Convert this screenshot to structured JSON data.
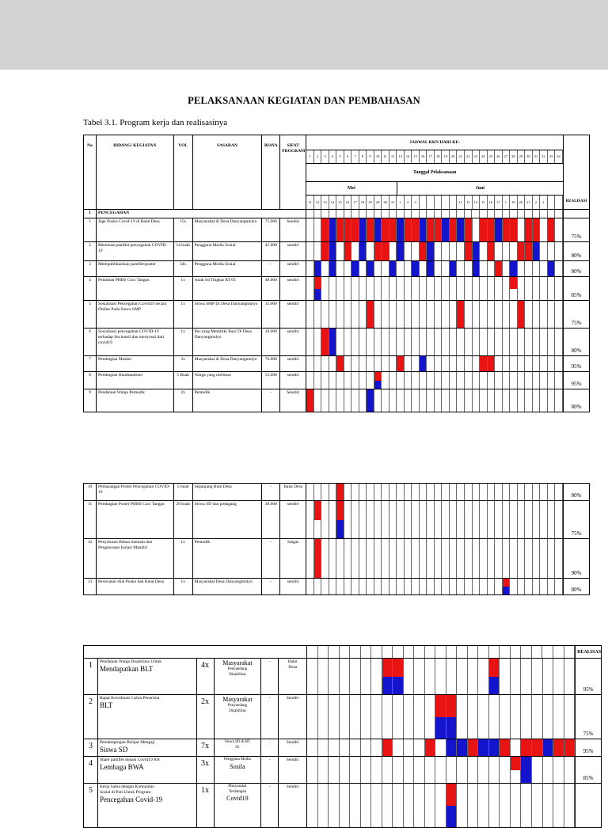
{
  "colors": {
    "red": "#e81414",
    "blue": "#1414cd"
  },
  "page": {
    "title": "PELAKSANAAN KEGIATAN DAN PEMBAHASAN",
    "caption": "Tabel 3.1. Program kerja dan realisasinya"
  },
  "table1": {
    "headers": {
      "no": "No",
      "kegiatan": "BIDANG/ KEGIATAN",
      "vol": "VOL",
      "sasaran": "SASARAN",
      "biaya": "BIAYA",
      "sifat": "SIFAT PROGRAM",
      "jadwal": "JADWAL KKN HARI KE-",
      "tanggal": "Tanggal Pelaksanaan",
      "realisasi": "REALISASI"
    },
    "months": [
      "Mei",
      "Juni"
    ],
    "days": [
      "1",
      "2",
      "3",
      "4",
      "5",
      "6",
      "7",
      "8",
      "9",
      "10",
      "11",
      "12",
      "13",
      "14",
      "15",
      "16",
      "17",
      "18",
      "19",
      "20",
      "21",
      "22",
      "23",
      "24",
      "25",
      "26",
      "27",
      "28",
      "29",
      "30",
      "31",
      "32",
      "33",
      "34"
    ],
    "dates": [
      "11",
      "12",
      "13",
      "14",
      "15",
      "16",
      "17",
      "18",
      "19",
      "20",
      "30",
      "31",
      "1",
      "2",
      "3",
      "",
      "",
      "",
      "",
      "",
      "11",
      "13",
      "14",
      "15",
      "16",
      "17",
      "1",
      "19",
      "20",
      "21",
      "2",
      "2",
      "",
      ""
    ],
    "section": {
      "no": "I",
      "label": "PENCEGAHAN",
      "pattern": [
        ""
      ]
    },
    "rows": [
      {
        "no": "1",
        "kegiatan": "Jaga Posko Covid-19 di Balai Desa",
        "vol": "15x",
        "sasaran": "Masyarakat di Desa Danyangmulyo",
        "biaya": "75.000",
        "sifat": "Sendiri",
        "realisasi": "75%",
        "pattern": [
          "..RBRRRBRBRRBRRBRRBRBR.RRBRR.RR.R."
        ]
      },
      {
        "no": "2",
        "kegiatan": "Membuat pamflet pencegahan COVID-19",
        "vol": "14 buah",
        "sasaran": "Pengguna Media Sosial",
        "biaya": "45.000",
        "sifat": "sendiri",
        "realisasi": "80%",
        "pattern": [
          "..RB.R.B.RR.B..RB....RB.R...RRB..."
        ]
      },
      {
        "no": "3",
        "kegiatan": "Mempublikasikan pamflet/poster",
        "vol": "34x",
        "sasaran": "Pengguna Media Sosial",
        "biaya": "-",
        "sifat": "sendiri",
        "realisasi": "80%",
        "pattern": [
          ".B.B..B.B..B..B.B..B..B..R.B....B."
        ]
      },
      {
        "no": "4",
        "kegiatan": "Pelatihan PHBS Cuci Tangan",
        "vol": "1x",
        "sasaran": "Anak Sd Tingkat RT 05",
        "biaya": "48.000",
        "sifat": "sendiri",
        "realisasi": "85%",
        "pattern": [
          ".R.........................R......",
          ".B................................"
        ]
      },
      {
        "no": "5",
        "kegiatan": "Sosialisasi Pencegahan Covid19 secara Online Pada Siswa SMP",
        "vol": "1x",
        "sasaran": "Siswa SMP Di Desa Danyangmulyo",
        "biaya": "15.000",
        "sifat": "sendiri",
        "realisasi": "75%",
        "pattern": [
          "........R...........R.......R....."
        ]
      },
      {
        "no": "6",
        "kegiatan": "Sosialisasi pencegahan COVID-19 terhadap ibu hamil dan menyusui dari covid19",
        "vol": "1x",
        "sasaran": "Ibu yang Memiliki Bayi Di Desa Danyangmulyo",
        "biaya": "18.000",
        "sifat": "sendiri",
        "realisasi": "80%",
        "pattern": [
          "..RB.............................."
        ]
      },
      {
        "no": "7",
        "kegiatan": "Pembagian Masker",
        "vol": "3x",
        "sasaran": "Masyarakat di Desa Danyangmulyo",
        "biaya": "76.000",
        "sifat": "sendiri",
        "realisasi": "95%",
        "pattern": [
          "....R.......R..B.......RR........."
        ]
      },
      {
        "no": "8",
        "kegiatan": "Pembagian Handsanitizer",
        "vol": "5 Buah",
        "sasaran": "Warga yang melintas",
        "biaya": "55.000",
        "sifat": "sendiri",
        "realisasi": "95%",
        "pattern": [
          ".........R........................",
          ".........B........................"
        ]
      },
      {
        "no": "9",
        "kegiatan": "Pendataan Warga Pemudik",
        "vol": "2x",
        "sasaran": "Pemudik",
        "biaya": "-",
        "sifat": "Sendiri",
        "realisasi": "80%",
        "pattern": [
          "R.......B........................."
        ]
      }
    ]
  },
  "table2": {
    "rows": [
      {
        "no": "10",
        "kegiatan": "Pemasangan Poster Pencegahan COVID-19",
        "vol": "5 buah",
        "sasaran": "Sepanjang Rute Desa",
        "biaya": "-",
        "sifat": "Balai Desa",
        "realisasi": "80%",
        "pattern": [
          "....R............................."
        ]
      },
      {
        "no": "11",
        "kegiatan": "Pembagian Poster PHBS Cuci Tangan",
        "vol": "20 buah",
        "sasaran": "Siswa SD dan pedagang",
        "biaya": "38.000",
        "sifat": "sendiri",
        "realisasi": "75%",
        "pattern": [
          ".R..R.............................",
          "....B............................."
        ]
      },
      {
        "no": "12",
        "kegiatan": "Penyaluran Bahan bantuan dan Pengawasan Isolasi Mandiri",
        "vol": "1x",
        "sasaran": "Pemudik",
        "biaya": "-",
        "sifat": "Satgas",
        "realisasi": "90%",
        "pattern": [
          ".R................................"
        ]
      },
      {
        "no": "13",
        "kegiatan": "Perawatan Alat Posko dan Balai Desa",
        "vol": "1x",
        "sasaran": "Masyarakat Desa Danyangmulyo",
        "biaya": "-",
        "sifat": "sendiri",
        "realisasi": "80%",
        "pattern": [
          "..........................R.......",
          "..........................B......."
        ]
      }
    ]
  },
  "table3": {
    "header": {
      "realisasi": "REALISASI"
    },
    "header_pattern": [
      ""
    ],
    "rows": [
      {
        "no": "1",
        "keg_small": "Pendataan Warga Disabilitas Untuk",
        "keg_big": "Mendapatkan BLT",
        "vol": "4x",
        "sas_big": "Masyarakat",
        "sas_small": "Penyandang\nDisabilitas",
        "biaya": "-",
        "sifat": "Balai\nDesa",
        "realisasi": "95%",
        "pattern": [
          ".......RR........R.......",
          ".......BB........B......."
        ]
      },
      {
        "no": "2",
        "keg_small": "Rapat Koordinasi Calon Penerima",
        "keg_big": "BLT",
        "vol": "2x",
        "sas_big": "Masyarakat",
        "sas_small": "Penyandang\nDisabilitas",
        "biaya": "-",
        "sifat": "Sendiri",
        "realisasi": "75%",
        "pattern": [
          "............RR...........",
          "............BB..........."
        ]
      },
      {
        "no": "3",
        "keg_small": "Pendampingan Belajar Mengaji",
        "keg_big": "Siswa SD",
        "vol": "7x",
        "sas_small": "Siswa SD di RT\n05",
        "biaya": "-",
        "sifat": "Sendiri",
        "realisasi": "95%",
        "pattern": [
          ".......R...R.BBRBBR.RRBRR"
        ]
      },
      {
        "no": "4",
        "keg_small": "Share pamflet donasi Covid19 AN",
        "keg_big": "Lembaga BWA",
        "vol": "3x",
        "sas_small": "Pengguna Media",
        "sas_big": "Sosila",
        "biaya": "-",
        "sifat": "Sendiri",
        "realisasi": "85%",
        "pattern": [
          "...................RB....",
          "....................B...."
        ]
      },
      {
        "no": "5",
        "keg_small": "Kerja Sama dengan Komunitas\nSosial di Pati Untuk Program",
        "keg_big": "Pencegahan Covid-19",
        "vol": "1x",
        "sas_small": "Masyarakat\nTerdampak",
        "sas_big": "Covid19",
        "biaya": "-",
        "sifat": "Sendiri",
        "realisasi": "",
        "pattern": [
          ".............R...........",
          ".............B..........."
        ]
      }
    ]
  }
}
